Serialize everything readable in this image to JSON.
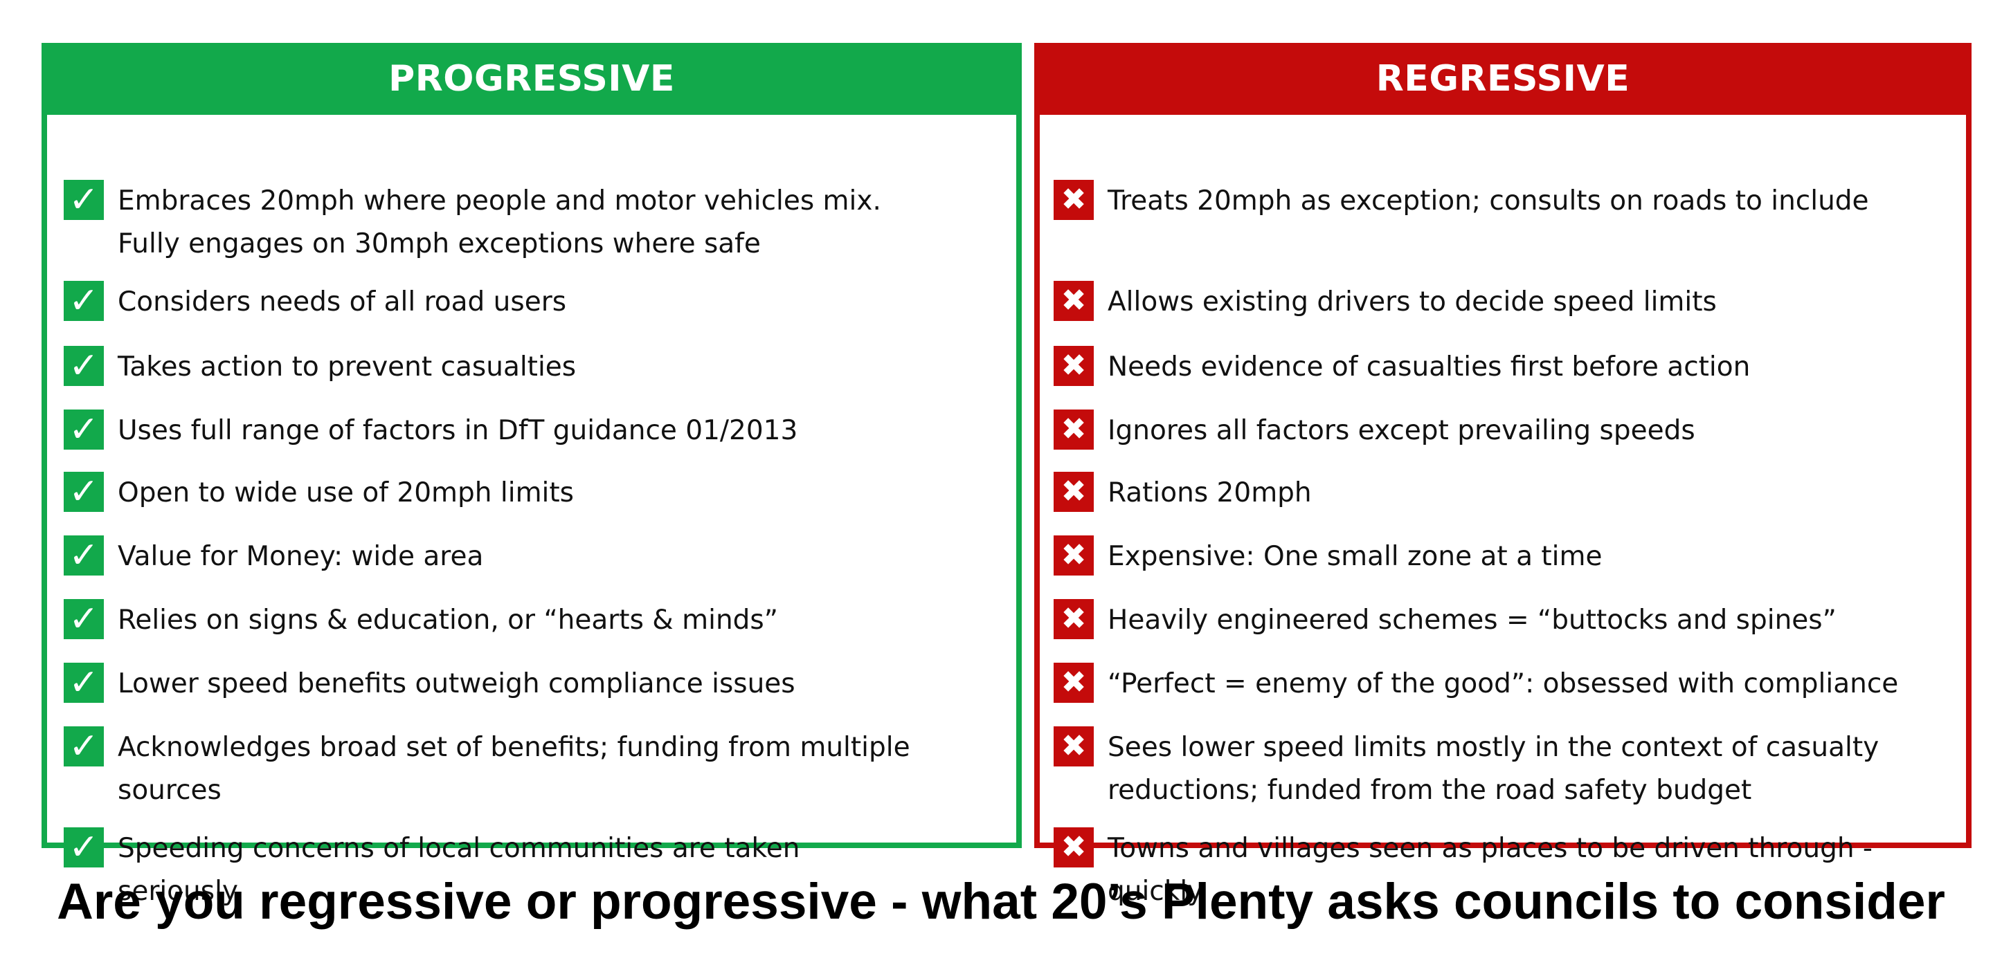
{
  "progressive": {
    "title": "PROGRESSIVE",
    "icon": "check-icon",
    "color": "#12a94b",
    "items": [
      "Embraces 20mph where people and motor vehicles mix. Fully engages on 30mph exceptions where safe",
      "Considers needs of all road users",
      "Takes action to prevent casualties",
      "Uses full range of factors in DfT guidance 01/2013",
      "Open to wide use of 20mph limits",
      "Value for Money: wide area",
      "Relies on signs & education, or “hearts & minds”",
      "Lower speed benefits outweigh compliance issues",
      "Acknowledges broad set of benefits; funding from multiple sources",
      "Speeding concerns of local communities are taken seriously"
    ]
  },
  "regressive": {
    "title": "REGRESSIVE",
    "icon": "cross-icon",
    "color": "#c40b0b",
    "items": [
      "Treats 20mph as exception; consults on roads to include",
      "Allows existing drivers to decide speed limits",
      "Needs evidence of casualties first before action",
      "Ignores all factors except prevailing speeds",
      "Rations 20mph",
      "Expensive: One small zone at a time",
      "Heavily engineered schemes = “buttocks and spines”",
      "“Perfect = enemy of the good”: obsessed with compliance",
      "Sees lower speed limits mostly in the context of casualty reductions; funded from the road safety budget",
      "Towns and villages seen as places to be driven through - quickly"
    ]
  },
  "caption": "Are you regressive or progressive - what 20’s Plenty asks councils to consider"
}
